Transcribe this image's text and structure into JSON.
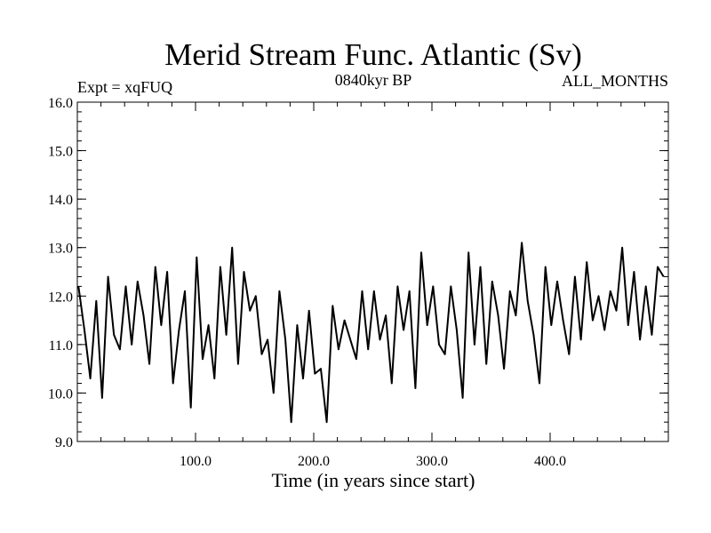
{
  "chart_data": {
    "type": "line",
    "title": "Merid Stream Func. Atlantic (Sv)",
    "subtitle_left": "Expt = xqFUQ",
    "subtitle_center": "0840kyr BP",
    "subtitle_right": "ALL_MONTHS",
    "xlabel": "Time (in years since start)",
    "ylabel": "",
    "xlim": [
      0,
      500
    ],
    "ylim": [
      9.0,
      16.0
    ],
    "x_ticks": [
      100,
      200,
      300,
      400
    ],
    "x_tick_labels": [
      "100.0",
      "200.0",
      "300.0",
      "400.0"
    ],
    "y_ticks": [
      9,
      10,
      11,
      12,
      13,
      14,
      15,
      16
    ],
    "y_tick_labels": [
      "9.0",
      "10.0",
      "11.0",
      "12.0",
      "13.0",
      "14.0",
      "15.0",
      "16.0"
    ],
    "grid": false,
    "series": [
      {
        "name": "Merid Stream Func. Atlantic",
        "x_start": 1,
        "x_step": 5,
        "values": [
          12.2,
          11.3,
          10.3,
          11.9,
          9.9,
          12.4,
          11.2,
          10.9,
          12.2,
          11.0,
          12.3,
          11.6,
          10.6,
          12.6,
          11.4,
          12.5,
          10.2,
          11.3,
          12.1,
          9.7,
          12.8,
          10.7,
          11.4,
          10.3,
          12.6,
          11.2,
          13.0,
          10.6,
          12.5,
          11.7,
          12.0,
          10.8,
          11.1,
          10.0,
          12.1,
          11.1,
          9.4,
          11.4,
          10.3,
          11.7,
          10.4,
          10.5,
          9.4,
          11.8,
          10.9,
          11.5,
          11.1,
          10.7,
          12.1,
          10.9,
          12.1,
          11.1,
          11.6,
          10.2,
          12.2,
          11.3,
          12.1,
          10.1,
          12.9,
          11.4,
          12.2,
          11.0,
          10.8,
          12.2,
          11.3,
          9.9,
          12.9,
          11.0,
          12.6,
          10.6,
          12.3,
          11.6,
          10.5,
          12.1,
          11.6,
          13.1,
          11.9,
          11.2,
          10.2,
          12.6,
          11.4,
          12.3,
          11.5,
          10.8,
          12.4,
          11.1,
          12.7,
          11.5,
          12.0,
          11.3,
          12.1,
          11.7,
          13.0,
          11.4,
          12.5,
          11.1,
          12.2,
          11.2,
          12.6,
          12.4
        ]
      }
    ]
  }
}
